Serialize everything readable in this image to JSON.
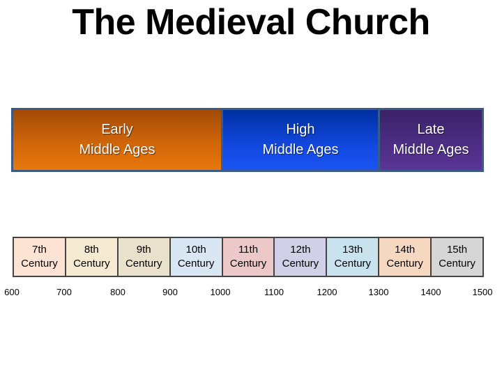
{
  "title": "The Medieval Church",
  "eras": [
    {
      "label": "Early\nMiddle Ages"
    },
    {
      "label": "High\nMiddle Ages"
    },
    {
      "label": "Late\nMiddle Ages"
    }
  ],
  "centuries": [
    {
      "label": "7th\nCentury",
      "color": "#fde3d3"
    },
    {
      "label": "8th\nCentury",
      "color": "#f6e9d2"
    },
    {
      "label": "9th\nCentury",
      "color": "#e9e1cc"
    },
    {
      "label": "10th\nCentury",
      "color": "#d9e6f3"
    },
    {
      "label": "11th\nCentury",
      "color": "#ecc9c8"
    },
    {
      "label": "12th\nCentury",
      "color": "#d2d0e6"
    },
    {
      "label": "13th\nCentury",
      "color": "#c9e3ee"
    },
    {
      "label": "14th\nCentury",
      "color": "#f6d8c1"
    },
    {
      "label": "15th\nCentury",
      "color": "#d6d6d6"
    }
  ],
  "years": [
    "600",
    "700",
    "800",
    "900",
    "1000",
    "1100",
    "1200",
    "1300",
    "1400",
    "1500"
  ]
}
